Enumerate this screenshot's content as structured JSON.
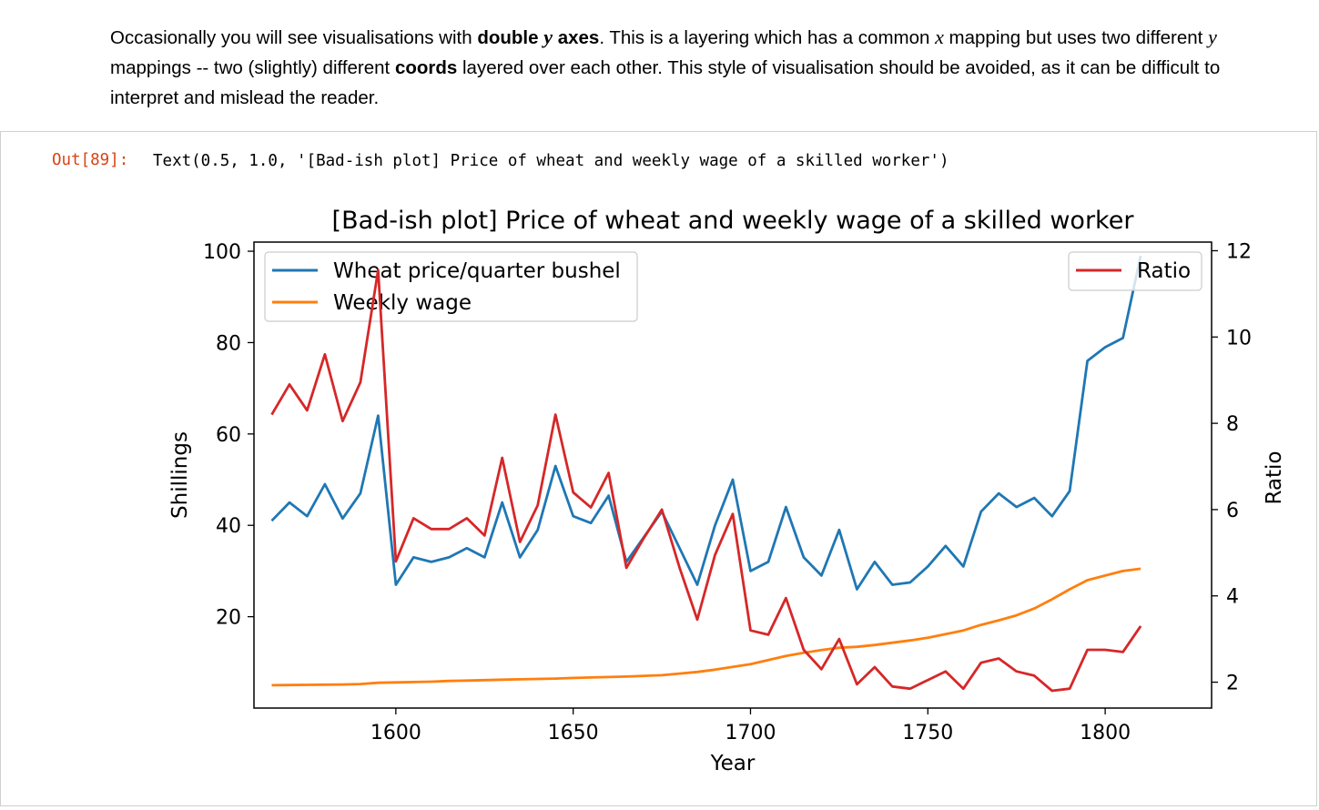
{
  "markdown": {
    "s1": "Occasionally you will see visualisations with ",
    "b1": "double ",
    "m1": "y",
    "b2": " axes",
    "s2": ". This is a layering which has a common ",
    "m2": "x",
    "s3": " mapping but uses two different ",
    "m3": "y",
    "s4": " mappings -- two (slightly) different ",
    "b3": "coords",
    "s5": " layered over each other. This style of visualisation should be avoided, as it can be difficult to interpret and mislead the reader."
  },
  "output": {
    "prompt": "Out[89]:",
    "text": "Text(0.5, 1.0, '[Bad-ish plot] Price of wheat and weekly wage of a skilled worker')"
  },
  "chart_data": {
    "type": "line",
    "title": "[Bad-ish plot] Price of wheat and weekly wage of a skilled worker",
    "xlabel": "Year",
    "ylabel": "Shillings",
    "ylabel_right": "Ratio",
    "xlim": [
      1560,
      1830
    ],
    "ylim": [
      0,
      102
    ],
    "ylim_right": [
      1.4,
      12.2
    ],
    "xticks": [
      1600,
      1650,
      1700,
      1750,
      1800
    ],
    "yticks": [
      20,
      40,
      60,
      80,
      100
    ],
    "yticks_right": [
      2,
      4,
      6,
      8,
      10,
      12
    ],
    "grid": false,
    "legend_left_placement": "upper-left",
    "legend_right_placement": "upper-right",
    "colors": {
      "wheat": "#1f77b4",
      "wage": "#ff7f0e",
      "ratio": "#d62728"
    },
    "x": [
      1565,
      1570,
      1575,
      1580,
      1585,
      1590,
      1595,
      1600,
      1605,
      1610,
      1615,
      1620,
      1625,
      1630,
      1635,
      1640,
      1645,
      1650,
      1655,
      1660,
      1665,
      1670,
      1675,
      1680,
      1685,
      1690,
      1695,
      1700,
      1705,
      1710,
      1715,
      1720,
      1725,
      1730,
      1735,
      1740,
      1745,
      1750,
      1755,
      1760,
      1765,
      1770,
      1775,
      1780,
      1785,
      1790,
      1795,
      1800,
      1805,
      1810
    ],
    "series_left": [
      {
        "name": "Wheat price/quarter bushel",
        "color": "#1f77b4",
        "values": [
          41,
          45,
          42,
          49,
          41.5,
          47,
          64,
          27,
          33,
          32,
          33,
          35,
          33,
          45,
          33,
          39,
          53,
          42,
          40.5,
          46.5,
          32,
          37.5,
          43,
          35,
          27,
          40,
          50,
          30,
          32,
          44,
          33,
          29,
          39,
          26,
          32,
          27,
          27.5,
          31,
          35.5,
          31,
          43,
          47,
          44,
          46,
          42,
          47.5,
          76,
          79,
          81,
          99
        ]
      },
      {
        "name": "Weekly wage",
        "color": "#ff7f0e",
        "values": [
          5,
          5.05,
          5.08,
          5.12,
          5.15,
          5.25,
          5.54,
          5.61,
          5.69,
          5.78,
          5.94,
          6.01,
          6.12,
          6.22,
          6.3,
          6.37,
          6.45,
          6.6,
          6.69,
          6.8,
          6.9,
          7.05,
          7.2,
          7.55,
          7.9,
          8.4,
          9.0,
          9.6,
          10.5,
          11.4,
          12.1,
          12.7,
          13.2,
          13.4,
          13.8,
          14.3,
          14.8,
          15.4,
          16.2,
          17.0,
          18.2,
          19.2,
          20.3,
          21.8,
          23.8,
          26.0,
          28.0,
          29.0,
          30.0,
          30.5
        ]
      }
    ],
    "series_right": [
      {
        "name": "Ratio",
        "color": "#d62728",
        "values": [
          8.2,
          8.9,
          8.3,
          9.6,
          8.05,
          8.95,
          11.55,
          4.8,
          5.8,
          5.55,
          5.55,
          5.8,
          5.4,
          7.2,
          5.25,
          6.1,
          8.2,
          6.4,
          6.05,
          6.85,
          4.65,
          5.35,
          6.0,
          4.65,
          3.45,
          4.95,
          5.9,
          3.2,
          3.1,
          3.95,
          2.75,
          2.3,
          3.0,
          1.95,
          2.35,
          1.9,
          1.85,
          2.05,
          2.25,
          1.85,
          2.45,
          2.55,
          2.25,
          2.15,
          1.8,
          1.85,
          2.75,
          2.75,
          2.7,
          3.3
        ]
      }
    ]
  }
}
